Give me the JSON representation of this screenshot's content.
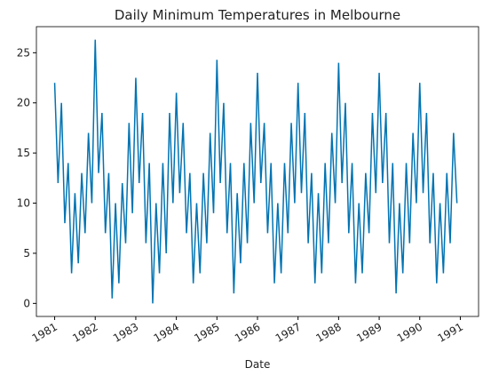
{
  "chart_data": {
    "type": "line",
    "title": "Daily Minimum Temperatures in Melbourne",
    "xlabel": "Date",
    "x": [
      1981,
      1981.083,
      1981.167,
      1981.25,
      1981.333,
      1981.417,
      1981.5,
      1981.583,
      1981.667,
      1981.75,
      1981.833,
      1981.917,
      1982,
      1982.083,
      1982.167,
      1982.25,
      1982.333,
      1982.417,
      1982.5,
      1982.583,
      1982.667,
      1982.75,
      1982.833,
      1982.917,
      1983,
      1983.083,
      1983.167,
      1983.25,
      1983.333,
      1983.417,
      1983.5,
      1983.583,
      1983.667,
      1983.75,
      1983.833,
      1983.917,
      1984,
      1984.083,
      1984.167,
      1984.25,
      1984.333,
      1984.417,
      1984.5,
      1984.583,
      1984.667,
      1984.75,
      1984.833,
      1984.917,
      1985,
      1985.083,
      1985.167,
      1985.25,
      1985.333,
      1985.417,
      1985.5,
      1985.583,
      1985.667,
      1985.75,
      1985.833,
      1985.917,
      1986,
      1986.083,
      1986.167,
      1986.25,
      1986.333,
      1986.417,
      1986.5,
      1986.583,
      1986.667,
      1986.75,
      1986.833,
      1986.917,
      1987,
      1987.083,
      1987.167,
      1987.25,
      1987.333,
      1987.417,
      1987.5,
      1987.583,
      1987.667,
      1987.75,
      1987.833,
      1987.917,
      1988,
      1988.083,
      1988.167,
      1988.25,
      1988.333,
      1988.417,
      1988.5,
      1988.583,
      1988.667,
      1988.75,
      1988.833,
      1988.917,
      1989,
      1989.083,
      1989.167,
      1989.25,
      1989.333,
      1989.417,
      1989.5,
      1989.583,
      1989.667,
      1989.75,
      1989.833,
      1989.917,
      1990,
      1990.083,
      1990.167,
      1990.25,
      1990.333,
      1990.417,
      1990.5,
      1990.583,
      1990.667,
      1990.75,
      1990.833,
      1990.917
    ],
    "series": [
      {
        "color": "#0173b2",
        "values": [
          22,
          12,
          20,
          8,
          14,
          3,
          11,
          4,
          13,
          7,
          17,
          10,
          26.3,
          13,
          19,
          7,
          13,
          0.5,
          10,
          2,
          12,
          6,
          18,
          9,
          22.5,
          12,
          19,
          6,
          14,
          0,
          10,
          3,
          14,
          5,
          19,
          10,
          21,
          11,
          18,
          7,
          13,
          2,
          10,
          3,
          13,
          6,
          17,
          9,
          24.3,
          12,
          20,
          7,
          14,
          1,
          11,
          4,
          14,
          6,
          18,
          10,
          23,
          12,
          18,
          7,
          14,
          2,
          10,
          3,
          14,
          7,
          18,
          10,
          22,
          11,
          19,
          6,
          13,
          2,
          11,
          3,
          14,
          6,
          17,
          10,
          24,
          12,
          20,
          7,
          14,
          2,
          10,
          3,
          13,
          7,
          19,
          11,
          23,
          12,
          19,
          6,
          14,
          1,
          10,
          3,
          14,
          6,
          17,
          10,
          22,
          11,
          19,
          6,
          13,
          2,
          10,
          3,
          13,
          6,
          17,
          10
        ]
      }
    ],
    "xlim": [
      1980.55,
      1991.45
    ],
    "xticks": [
      1981,
      1982,
      1983,
      1984,
      1985,
      1986,
      1987,
      1988,
      1989,
      1990,
      1991
    ],
    "ylim": [
      -1.3,
      27.6
    ],
    "yticks": [
      0,
      5,
      10,
      15,
      20,
      25
    ]
  }
}
